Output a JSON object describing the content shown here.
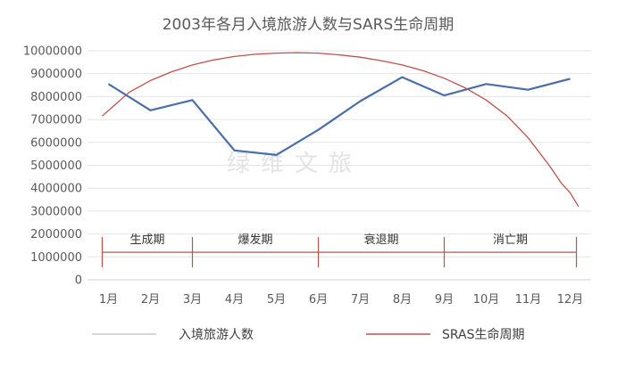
{
  "chart_data": {
    "type": "line",
    "title": "2003年各月入境旅游人数与SARS生命周期",
    "xlabel": "",
    "ylabel": "",
    "categories": [
      "1月",
      "2月",
      "3月",
      "4月",
      "5月",
      "6月",
      "7月",
      "8月",
      "9月",
      "10月",
      "11月",
      "12月"
    ],
    "ylim": [
      0,
      10000000
    ],
    "yticks": [
      0,
      1000000,
      2000000,
      3000000,
      4000000,
      5000000,
      6000000,
      7000000,
      8000000,
      9000000,
      10000000
    ],
    "grid": true,
    "legend_position": "bottom",
    "series": [
      {
        "name": "入境旅游人数",
        "color": "#4a6eaa",
        "values": [
          8550000,
          7400000,
          7850000,
          5650000,
          5450000,
          6550000,
          7800000,
          8850000,
          8050000,
          8550000,
          8300000,
          8780000
        ]
      },
      {
        "name": "SRAS生命周期",
        "color": "#c0504d",
        "x": [
          0.85,
          1.5,
          2.0,
          2.5,
          3.0,
          3.5,
          4.0,
          4.5,
          5.0,
          5.5,
          6.0,
          6.5,
          7.0,
          7.5,
          8.0,
          8.5,
          9.0,
          9.5,
          10.0,
          10.5,
          11.0,
          11.5,
          11.8,
          12.0,
          12.2
        ],
        "values": [
          7150000,
          8200000,
          8700000,
          9080000,
          9380000,
          9600000,
          9750000,
          9850000,
          9900000,
          9920000,
          9900000,
          9820000,
          9720000,
          9570000,
          9380000,
          9130000,
          8800000,
          8380000,
          7850000,
          7150000,
          6200000,
          5000000,
          4200000,
          3800000,
          3200000
        ]
      }
    ],
    "phases": [
      {
        "label": "生成期",
        "from": 0.85,
        "to": 3.0
      },
      {
        "label": "爆发期",
        "from": 3.0,
        "to": 6.0
      },
      {
        "label": "衰退期",
        "from": 6.0,
        "to": 9.0
      },
      {
        "label": "消亡期",
        "from": 9.0,
        "to": 12.15
      }
    ],
    "phase_line_level": 1200000,
    "watermark": "绿维文旅"
  }
}
